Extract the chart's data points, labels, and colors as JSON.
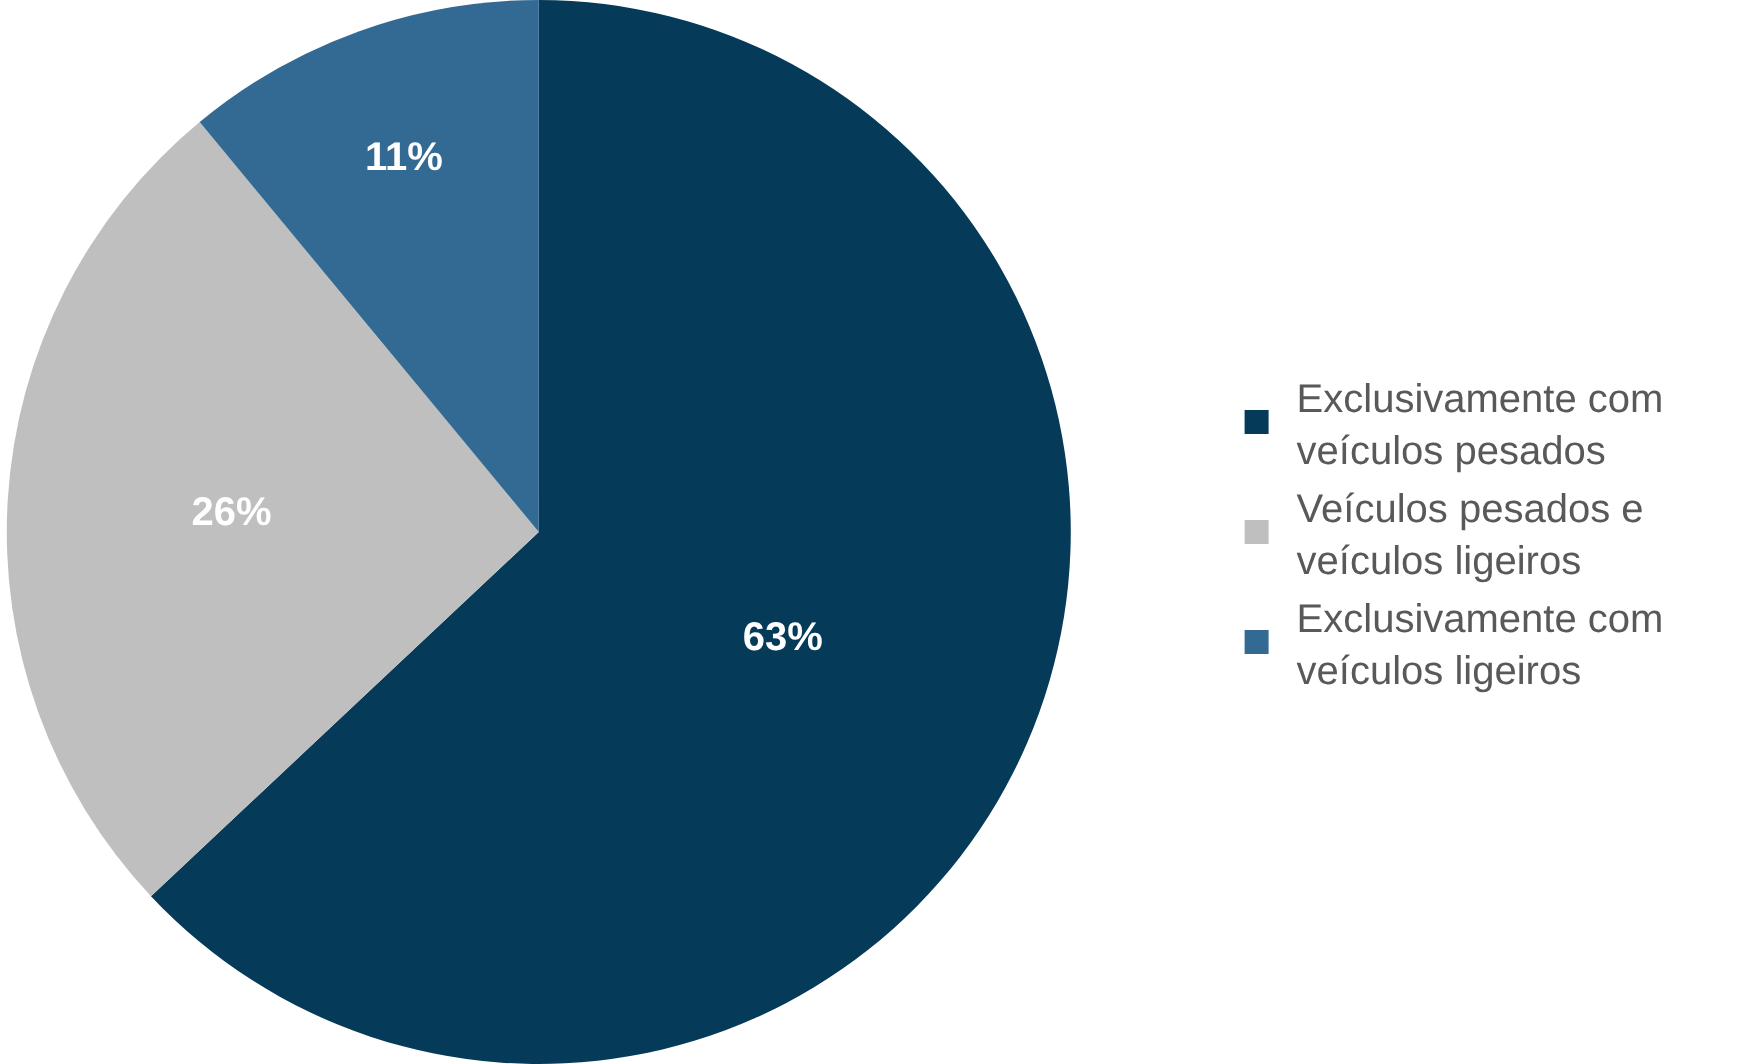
{
  "chart_data": {
    "type": "pie",
    "categories": [
      "Exclusivamente com veículos pesados",
      "Veículos pesados e veículos ligeiros",
      "Exclusivamente com veículos ligeiros"
    ],
    "values": [
      63,
      26,
      11
    ],
    "colors": [
      "#053a59",
      "#bfbfbf",
      "#336a93"
    ],
    "value_labels": [
      "63%",
      "26%",
      "11%"
    ],
    "legend": "right"
  }
}
